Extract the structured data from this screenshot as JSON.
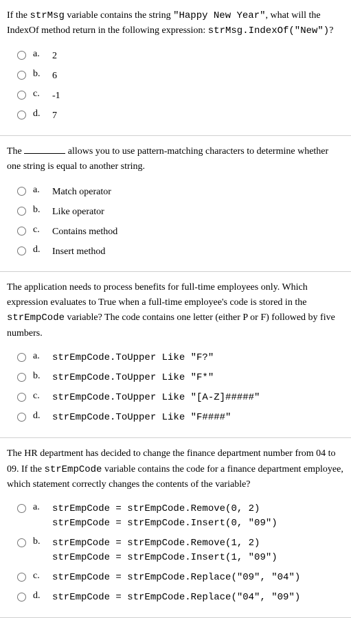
{
  "questions": [
    {
      "text_parts": {
        "t1": "If the ",
        "c1": "strMsg",
        "t2": " variable contains the string ",
        "c2": "\"Happy New Year\"",
        "t3": ", what will the IndexOf method return in the following expression: ",
        "c3": "strMsg.IndexOf(\"New\")",
        "t4": "?"
      },
      "opts": {
        "a": "2",
        "b": "6",
        "c": "-1",
        "d": "7"
      }
    },
    {
      "text_parts": {
        "t1": "The ",
        "t2": " allows you to use pattern-matching characters to determine whether one string is equal to another string."
      },
      "opts": {
        "a": "Match operator",
        "b": "Like operator",
        "c": "Contains method",
        "d": "Insert method"
      }
    },
    {
      "text_parts": {
        "t1": "The application needs to process benefits for full-time employees only. Which expression evaluates to True when a full-time employee's code is stored in the ",
        "c1": "strEmpCode",
        "t2": " variable? The code contains one letter (either P or F) followed by five numbers."
      },
      "opts": {
        "a": "strEmpCode.ToUpper Like \"F?\"",
        "b": "strEmpCode.ToUpper Like \"F*\"",
        "c": "strEmpCode.ToUpper Like \"[A-Z]#####\"",
        "d": "strEmpCode.ToUpper Like \"F####\""
      }
    },
    {
      "text_parts": {
        "t1": "The HR department has decided to change the finance department number from 04 to 09. If the ",
        "c1": "strEmpCode",
        "t2": " variable contains the code for a finance department employee, which statement correctly changes the contents of the variable?"
      },
      "opts": {
        "a1": "strEmpCode = strEmpCode.Remove(0, 2)",
        "a2": "strEmpCode = strEmpCode.Insert(0, \"09\")",
        "b1": "strEmpCode = strEmpCode.Remove(1, 2)",
        "b2": "strEmpCode = strEmpCode.Insert(1, \"09\")",
        "c": "strEmpCode = strEmpCode.Replace(\"09\", \"04\")",
        "d": "strEmpCode = strEmpCode.Replace(\"04\", \"09\")"
      }
    }
  ],
  "letters": {
    "a": "a.",
    "b": "b.",
    "c": "c.",
    "d": "d."
  }
}
